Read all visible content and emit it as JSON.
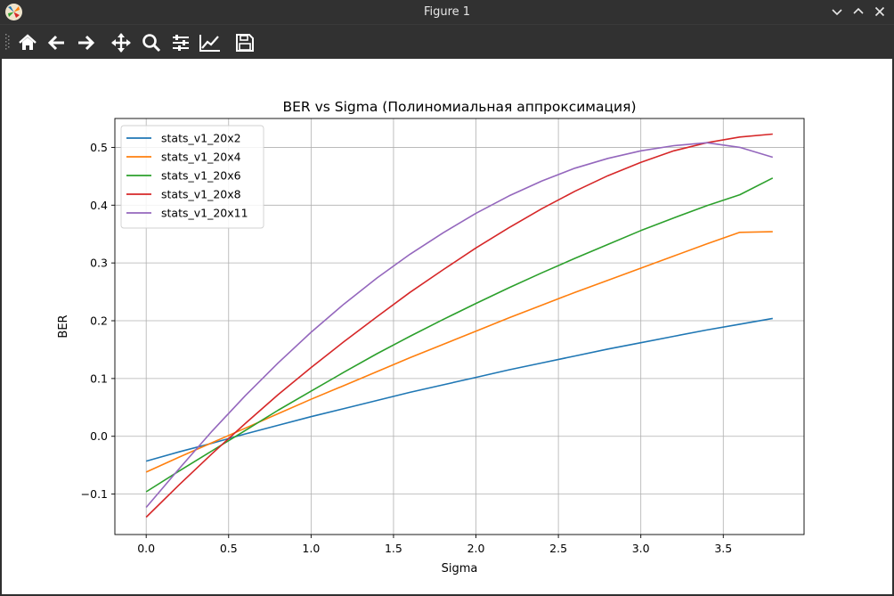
{
  "window": {
    "title": "Figure 1"
  },
  "toolbar": {
    "buttons": [
      {
        "name": "home-icon",
        "tooltip": ""
      },
      {
        "name": "back-arrow-icon",
        "tooltip": ""
      },
      {
        "name": "forward-arrow-icon",
        "tooltip": ""
      },
      {
        "name": "pan-icon",
        "tooltip": ""
      },
      {
        "name": "zoom-icon",
        "tooltip": ""
      },
      {
        "name": "subplots-icon",
        "tooltip": ""
      },
      {
        "name": "axes-edit-icon",
        "tooltip": ""
      },
      {
        "name": "save-icon",
        "tooltip": ""
      }
    ]
  },
  "colors": {
    "stats_v1_20x2": "#1f77b4",
    "stats_v1_20x4": "#ff7f0e",
    "stats_v1_20x6": "#2ca02c",
    "stats_v1_20x8": "#d62728",
    "stats_v1_20x11": "#9467bd"
  },
  "chart_data": {
    "type": "line",
    "title": "BER vs Sigma (Полиномиальная аппроксимация)",
    "xlabel": "Sigma",
    "ylabel": "BER",
    "xlim": [
      -0.19,
      3.99
    ],
    "ylim": [
      -0.17,
      0.55
    ],
    "xticks": [
      0.0,
      0.5,
      1.0,
      1.5,
      2.0,
      2.5,
      3.0,
      3.5
    ],
    "xtick_labels": [
      "0.0",
      "0.5",
      "1.0",
      "1.5",
      "2.0",
      "2.5",
      "3.0",
      "3.5"
    ],
    "yticks": [
      -0.1,
      0.0,
      0.1,
      0.2,
      0.3,
      0.4,
      0.5
    ],
    "ytick_labels": [
      "−0.1",
      "0.0",
      "0.1",
      "0.2",
      "0.3",
      "0.4",
      "0.5"
    ],
    "grid": true,
    "legend_position": "upper-left",
    "x": [
      0.0,
      0.2,
      0.4,
      0.6,
      0.8,
      1.0,
      1.2,
      1.4,
      1.6,
      1.8,
      2.0,
      2.2,
      2.4,
      2.6,
      2.8,
      3.0,
      3.2,
      3.4,
      3.6,
      3.8
    ],
    "series": [
      {
        "name": "stats_v1_20x2",
        "color": "#1f77b4",
        "values": [
          -0.043,
          -0.027,
          -0.012,
          0.004,
          0.019,
          0.034,
          0.048,
          0.062,
          0.076,
          0.089,
          0.102,
          0.115,
          0.127,
          0.139,
          0.151,
          0.162,
          0.173,
          0.184,
          0.194,
          0.204
        ]
      },
      {
        "name": "stats_v1_20x4",
        "color": "#ff7f0e",
        "values": [
          -0.062,
          -0.036,
          -0.011,
          0.014,
          0.039,
          0.064,
          0.088,
          0.112,
          0.136,
          0.159,
          0.182,
          0.205,
          0.227,
          0.249,
          0.27,
          0.291,
          0.312,
          0.333,
          0.353,
          0.354
        ]
      },
      {
        "name": "stats_v1_20x6",
        "color": "#2ca02c",
        "values": [
          -0.096,
          -0.06,
          -0.025,
          0.01,
          0.045,
          0.078,
          0.111,
          0.143,
          0.173,
          0.202,
          0.23,
          0.257,
          0.283,
          0.308,
          0.332,
          0.356,
          0.378,
          0.399,
          0.418,
          0.447
        ]
      },
      {
        "name": "stats_v1_20x8",
        "color": "#d62728",
        "values": [
          -0.14,
          -0.084,
          -0.03,
          0.022,
          0.072,
          0.119,
          0.164,
          0.207,
          0.249,
          0.288,
          0.326,
          0.361,
          0.394,
          0.424,
          0.451,
          0.474,
          0.494,
          0.508,
          0.518,
          0.523
        ]
      },
      {
        "name": "stats_v1_20x11",
        "color": "#9467bd",
        "values": [
          -0.123,
          -0.056,
          0.009,
          0.07,
          0.127,
          0.18,
          0.229,
          0.274,
          0.315,
          0.352,
          0.386,
          0.416,
          0.442,
          0.464,
          0.481,
          0.494,
          0.503,
          0.508,
          0.5,
          0.483
        ]
      }
    ]
  }
}
